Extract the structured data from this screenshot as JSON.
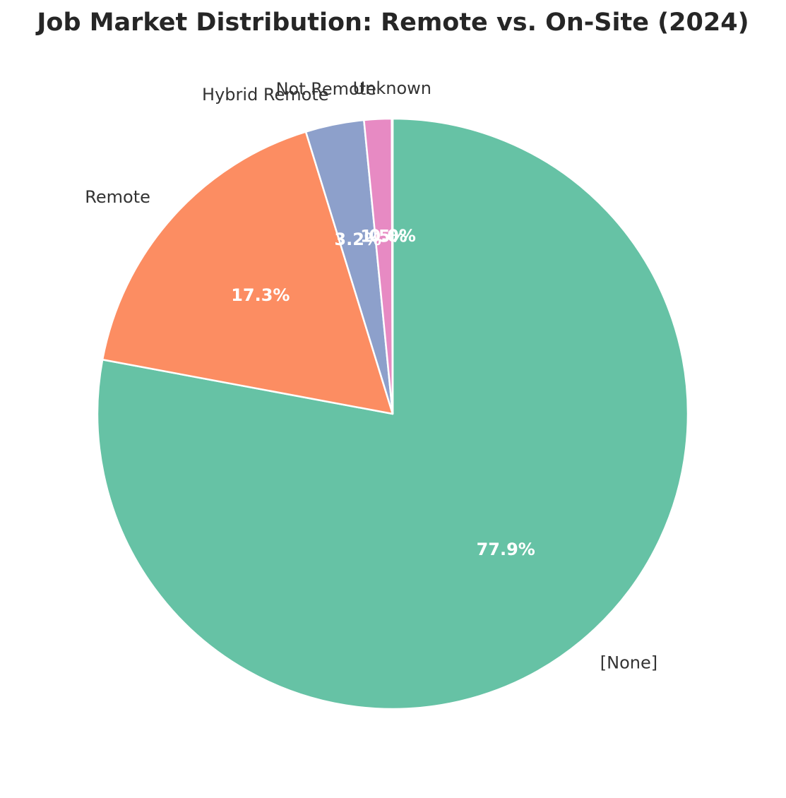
{
  "chart_data": {
    "type": "pie",
    "title": "Job Market Distribution: Remote vs. On-Site (2024)",
    "start_angle_deg": 90,
    "direction": "clockwise",
    "slices": [
      {
        "label": "[None]",
        "value": 77.9,
        "pct_label": "77.9%",
        "color": "#66c2a5"
      },
      {
        "label": "Remote",
        "value": 17.3,
        "pct_label": "17.3%",
        "color": "#fc8d62"
      },
      {
        "label": "Hybrid Remote",
        "value": 3.2,
        "pct_label": "3.2%",
        "color": "#8da0cb"
      },
      {
        "label": "Not Remote",
        "value": 1.5,
        "pct_label": "1.5%",
        "color": "#e78ac3"
      },
      {
        "label": "Unknown",
        "value": 0.05,
        "pct_label": "0.0%",
        "color": "#a6d854"
      }
    ]
  }
}
